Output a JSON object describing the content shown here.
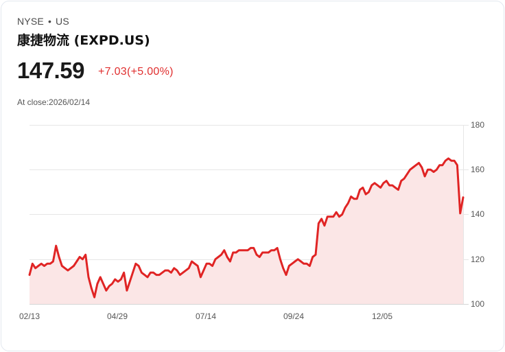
{
  "header": {
    "exchange": "NYSE",
    "separator": "•",
    "market": "US",
    "title": "康捷物流 (EXPD.US)",
    "price": "147.59",
    "change": "+7.03(+5.00%)",
    "close_label": "At close:2026/02/14"
  },
  "colors": {
    "line": "#e02424",
    "fill": "#fbe6e6",
    "change": "#e02f2f"
  },
  "chart_data": {
    "type": "area",
    "title": "",
    "xlabel": "",
    "ylabel": "",
    "x_tick_labels": [
      "02/13",
      "04/29",
      "07/14",
      "09/24",
      "12/05"
    ],
    "y_tick_labels": [
      "100",
      "120",
      "140",
      "160",
      "180"
    ],
    "ylim": [
      100,
      180
    ],
    "grid": true,
    "y_axis_position": "right",
    "series": [
      {
        "name": "EXPD.US",
        "approx_values": [
          113,
          118,
          116,
          117,
          118,
          117,
          118,
          118,
          119,
          126,
          121,
          117,
          116,
          115,
          116,
          117,
          119,
          121,
          120,
          122,
          112,
          107,
          103,
          109,
          112,
          109,
          106,
          108,
          109,
          111,
          110,
          111,
          114,
          106,
          110,
          114,
          118,
          117,
          114,
          113,
          112,
          114,
          114,
          113,
          113,
          114,
          115,
          115,
          114,
          116,
          115,
          113,
          114,
          115,
          116,
          119,
          118,
          117,
          112,
          115,
          118,
          118,
          117,
          120,
          121,
          122,
          124,
          121,
          119,
          123,
          123,
          124,
          124,
          124,
          124,
          125,
          125,
          122,
          121,
          123,
          123,
          123,
          124,
          124,
          125,
          120,
          116,
          113,
          117,
          118,
          119,
          120,
          119,
          118,
          118,
          117,
          121,
          122,
          136,
          138,
          135,
          139,
          139,
          139,
          141,
          139,
          140,
          143,
          145,
          148,
          147,
          147,
          151,
          152,
          149,
          150,
          153,
          154,
          153,
          152,
          154,
          155,
          153,
          153,
          152,
          151,
          155,
          156,
          158,
          160,
          161,
          162,
          163,
          161,
          157,
          160,
          160,
          159,
          160,
          162,
          162,
          164,
          165,
          164,
          164,
          162,
          140.5,
          147.6
        ]
      }
    ]
  }
}
